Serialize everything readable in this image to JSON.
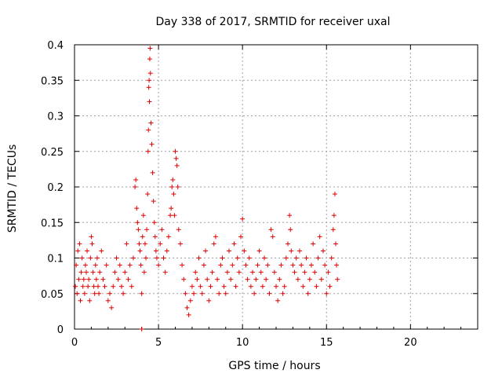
{
  "chart_data": {
    "type": "scatter",
    "title": "Day 338 of 2017, SRMTID for receiver uxal",
    "xlabel": "GPS time / hours",
    "ylabel": "SRMTID / TECUs",
    "xlim": [
      0,
      24
    ],
    "ylim": [
      0,
      0.4
    ],
    "xticks": [
      0,
      5,
      10,
      15,
      20
    ],
    "yticks": [
      0,
      0.05,
      0.1,
      0.15,
      0.2,
      0.25,
      0.3,
      0.35,
      0.4
    ],
    "xtick_labels": [
      "0",
      "5",
      "10",
      "15",
      "20"
    ],
    "ytick_labels": [
      "0",
      "0.05",
      "0.1",
      "0.15",
      "0.2",
      "0.25",
      "0.3",
      "0.35",
      "0.4"
    ],
    "grid": true,
    "marker": "+",
    "marker_color": "#e00000",
    "series": [
      {
        "name": "SRMTID",
        "points": [
          [
            0.05,
            0.06
          ],
          [
            0.1,
            0.09
          ],
          [
            0.15,
            0.05
          ],
          [
            0.2,
            0.11
          ],
          [
            0.25,
            0.07
          ],
          [
            0.3,
            0.12
          ],
          [
            0.35,
            0.04
          ],
          [
            0.4,
            0.08
          ],
          [
            0.45,
            0.1
          ],
          [
            0.5,
            0.06
          ],
          [
            0.55,
            0.07
          ],
          [
            0.6,
            0.05
          ],
          [
            0.65,
            0.09
          ],
          [
            0.7,
            0.08
          ],
          [
            0.75,
            0.11
          ],
          [
            0.8,
            0.06
          ],
          [
            0.85,
            0.07
          ],
          [
            0.9,
            0.04
          ],
          [
            0.95,
            0.1
          ],
          [
            1.0,
            0.13
          ],
          [
            1.05,
            0.12
          ],
          [
            1.1,
            0.08
          ],
          [
            1.15,
            0.06
          ],
          [
            1.2,
            0.05
          ],
          [
            1.25,
            0.09
          ],
          [
            1.3,
            0.07
          ],
          [
            1.35,
            0.1
          ],
          [
            1.4,
            0.06
          ],
          [
            1.45,
            0.05
          ],
          [
            1.5,
            0.08
          ],
          [
            1.6,
            0.11
          ],
          [
            1.7,
            0.07
          ],
          [
            1.8,
            0.06
          ],
          [
            1.9,
            0.09
          ],
          [
            2.0,
            0.04
          ],
          [
            2.1,
            0.05
          ],
          [
            2.2,
            0.03
          ],
          [
            2.3,
            0.06
          ],
          [
            2.4,
            0.08
          ],
          [
            2.5,
            0.1
          ],
          [
            2.6,
            0.07
          ],
          [
            2.7,
            0.09
          ],
          [
            2.8,
            0.06
          ],
          [
            2.9,
            0.05
          ],
          [
            3.0,
            0.08
          ],
          [
            3.1,
            0.12
          ],
          [
            3.2,
            0.07
          ],
          [
            3.3,
            0.09
          ],
          [
            3.4,
            0.06
          ],
          [
            3.5,
            0.1
          ],
          [
            3.6,
            0.2
          ],
          [
            3.65,
            0.21
          ],
          [
            3.7,
            0.17
          ],
          [
            3.75,
            0.15
          ],
          [
            3.8,
            0.14
          ],
          [
            3.85,
            0.12
          ],
          [
            3.9,
            0.11
          ],
          [
            3.95,
            0.09
          ],
          [
            4.0,
            0.05
          ],
          [
            4.0,
            0.0
          ],
          [
            4.05,
            0.13
          ],
          [
            4.1,
            0.16
          ],
          [
            4.15,
            0.08
          ],
          [
            4.2,
            0.12
          ],
          [
            4.25,
            0.1
          ],
          [
            4.3,
            0.14
          ],
          [
            4.35,
            0.19
          ],
          [
            4.38,
            0.25
          ],
          [
            4.4,
            0.28
          ],
          [
            4.42,
            0.34
          ],
          [
            4.44,
            0.35
          ],
          [
            4.46,
            0.32
          ],
          [
            4.48,
            0.38
          ],
          [
            4.5,
            0.395
          ],
          [
            4.52,
            0.36
          ],
          [
            4.55,
            0.29
          ],
          [
            4.6,
            0.26
          ],
          [
            4.65,
            0.22
          ],
          [
            4.7,
            0.18
          ],
          [
            4.75,
            0.15
          ],
          [
            4.8,
            0.13
          ],
          [
            4.85,
            0.11
          ],
          [
            4.9,
            0.1
          ],
          [
            5.0,
            0.09
          ],
          [
            5.1,
            0.12
          ],
          [
            5.2,
            0.14
          ],
          [
            5.3,
            0.1
          ],
          [
            5.4,
            0.08
          ],
          [
            5.5,
            0.11
          ],
          [
            5.6,
            0.13
          ],
          [
            5.7,
            0.16
          ],
          [
            5.75,
            0.17
          ],
          [
            5.8,
            0.2
          ],
          [
            5.85,
            0.21
          ],
          [
            5.9,
            0.19
          ],
          [
            5.95,
            0.16
          ],
          [
            6.0,
            0.25
          ],
          [
            6.05,
            0.24
          ],
          [
            6.1,
            0.23
          ],
          [
            6.15,
            0.2
          ],
          [
            6.2,
            0.14
          ],
          [
            6.3,
            0.12
          ],
          [
            6.4,
            0.09
          ],
          [
            6.5,
            0.07
          ],
          [
            6.6,
            0.05
          ],
          [
            6.7,
            0.03
          ],
          [
            6.8,
            0.02
          ],
          [
            6.9,
            0.04
          ],
          [
            7.0,
            0.06
          ],
          [
            7.1,
            0.05
          ],
          [
            7.2,
            0.08
          ],
          [
            7.3,
            0.07
          ],
          [
            7.4,
            0.1
          ],
          [
            7.5,
            0.06
          ],
          [
            7.6,
            0.05
          ],
          [
            7.7,
            0.09
          ],
          [
            7.8,
            0.11
          ],
          [
            7.9,
            0.07
          ],
          [
            8.0,
            0.04
          ],
          [
            8.1,
            0.06
          ],
          [
            8.2,
            0.08
          ],
          [
            8.3,
            0.12
          ],
          [
            8.4,
            0.13
          ],
          [
            8.5,
            0.07
          ],
          [
            8.6,
            0.05
          ],
          [
            8.7,
            0.09
          ],
          [
            8.8,
            0.1
          ],
          [
            8.9,
            0.06
          ],
          [
            9.0,
            0.05
          ],
          [
            9.1,
            0.08
          ],
          [
            9.2,
            0.11
          ],
          [
            9.3,
            0.07
          ],
          [
            9.4,
            0.09
          ],
          [
            9.5,
            0.12
          ],
          [
            9.6,
            0.06
          ],
          [
            9.7,
            0.1
          ],
          [
            9.8,
            0.08
          ],
          [
            9.9,
            0.13
          ],
          [
            10.0,
            0.155
          ],
          [
            10.1,
            0.11
          ],
          [
            10.2,
            0.09
          ],
          [
            10.3,
            0.07
          ],
          [
            10.4,
            0.1
          ],
          [
            10.5,
            0.06
          ],
          [
            10.6,
            0.08
          ],
          [
            10.7,
            0.05
          ],
          [
            10.8,
            0.07
          ],
          [
            10.9,
            0.09
          ],
          [
            11.0,
            0.11
          ],
          [
            11.1,
            0.08
          ],
          [
            11.2,
            0.06
          ],
          [
            11.3,
            0.1
          ],
          [
            11.4,
            0.07
          ],
          [
            11.5,
            0.09
          ],
          [
            11.6,
            0.05
          ],
          [
            11.7,
            0.14
          ],
          [
            11.8,
            0.13
          ],
          [
            11.9,
            0.08
          ],
          [
            12.0,
            0.06
          ],
          [
            12.1,
            0.04
          ],
          [
            12.2,
            0.07
          ],
          [
            12.3,
            0.09
          ],
          [
            12.4,
            0.05
          ],
          [
            12.5,
            0.06
          ],
          [
            12.6,
            0.1
          ],
          [
            12.7,
            0.12
          ],
          [
            12.8,
            0.16
          ],
          [
            12.85,
            0.14
          ],
          [
            12.9,
            0.11
          ],
          [
            13.0,
            0.09
          ],
          [
            13.1,
            0.08
          ],
          [
            13.2,
            0.1
          ],
          [
            13.3,
            0.07
          ],
          [
            13.4,
            0.11
          ],
          [
            13.5,
            0.09
          ],
          [
            13.6,
            0.06
          ],
          [
            13.7,
            0.08
          ],
          [
            13.8,
            0.1
          ],
          [
            13.9,
            0.05
          ],
          [
            14.0,
            0.07
          ],
          [
            14.1,
            0.09
          ],
          [
            14.2,
            0.12
          ],
          [
            14.3,
            0.08
          ],
          [
            14.4,
            0.06
          ],
          [
            14.5,
            0.1
          ],
          [
            14.6,
            0.13
          ],
          [
            14.7,
            0.07
          ],
          [
            14.8,
            0.11
          ],
          [
            14.9,
            0.09
          ],
          [
            15.0,
            0.05
          ],
          [
            15.1,
            0.08
          ],
          [
            15.2,
            0.06
          ],
          [
            15.3,
            0.1
          ],
          [
            15.4,
            0.14
          ],
          [
            15.45,
            0.16
          ],
          [
            15.5,
            0.19
          ],
          [
            15.55,
            0.12
          ],
          [
            15.6,
            0.09
          ],
          [
            15.65,
            0.07
          ]
        ]
      }
    ]
  }
}
